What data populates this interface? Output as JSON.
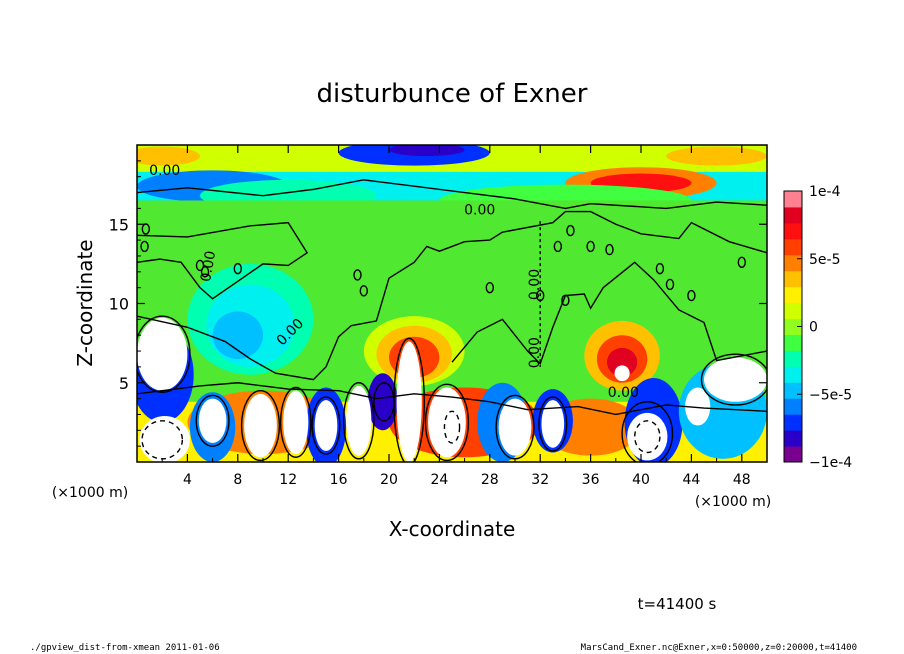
{
  "chart_data": {
    "type": "heatmap",
    "title": "disturbunce of Exner",
    "xlabel": "X-coordinate",
    "ylabel": "Z-coordinate",
    "x_unit_left": "(×1000 m)",
    "x_unit_right": "(×1000 m)",
    "xlim": [
      0,
      50
    ],
    "ylim": [
      0,
      20
    ],
    "x_ticks": [
      "4",
      "8",
      "12",
      "16",
      "20",
      "24",
      "28",
      "32",
      "36",
      "40",
      "44",
      "48"
    ],
    "x_tick_values": [
      4,
      8,
      12,
      16,
      20,
      24,
      28,
      32,
      36,
      40,
      44,
      48
    ],
    "y_ticks": [
      "5",
      "10",
      "15"
    ],
    "y_tick_values": [
      5,
      10,
      15
    ],
    "colorbar": {
      "labels": [
        "1e-4",
        "5e-5",
        "0",
        "−5e-5",
        "−1e-4"
      ],
      "label_values": [
        0.0001,
        5e-05,
        0,
        -5e-05,
        -0.0001
      ],
      "range": [
        -0.0001,
        0.0001
      ],
      "colors": [
        "#7a0090",
        "#2a00c8",
        "#0030ff",
        "#0080ff",
        "#00c0ff",
        "#00f0f0",
        "#00ffb0",
        "#40ff40",
        "#90ff20",
        "#d0ff00",
        "#fff000",
        "#ffc000",
        "#ff8000",
        "#ff4000",
        "#ff1010",
        "#e00020",
        "#ff8090"
      ]
    },
    "contour_labels": [
      "0.00",
      "0.00",
      "0.00",
      "0.00",
      "0.00",
      "0.00",
      "0.00",
      "0.00"
    ],
    "time_label": "t=41400 s"
  },
  "footer": {
    "left": "./gpview_dist-from-xmean  2011-01-06",
    "right": "MarsCand_Exner.nc@Exner,x=0:50000,z=0:20000,t=41400"
  }
}
